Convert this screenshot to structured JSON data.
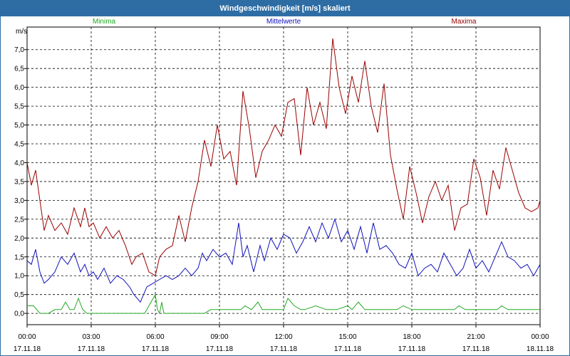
{
  "window": {
    "title": "Windgeschwindigkeit [m/s] skaliert"
  },
  "chart_data": {
    "type": "line",
    "title": "Windgeschwindigkeit [m/s] skaliert",
    "ylabel": "m/s",
    "xlabel": "",
    "ylim": [
      -0.3,
      7.6
    ],
    "yticks": [
      0.0,
      0.5,
      1.0,
      1.5,
      2.0,
      2.5,
      3.0,
      3.5,
      4.0,
      4.5,
      5.0,
      5.5,
      6.0,
      6.5,
      7.0
    ],
    "ytick_labels": [
      "0,0",
      "0,5",
      "1,0",
      "1,5",
      "2,0",
      "2,5",
      "3,0",
      "3,5",
      "4,0",
      "4,5",
      "5,0",
      "5,5",
      "6,0",
      "6,5",
      "7,0"
    ],
    "xlim": [
      0,
      24
    ],
    "xticks": [
      {
        "time": "00:00",
        "date": "17.11.18",
        "hour": 0
      },
      {
        "time": "03:00",
        "date": "17.11.18",
        "hour": 3
      },
      {
        "time": "06:00",
        "date": "17.11.18",
        "hour": 6
      },
      {
        "time": "09:00",
        "date": "17.11.18",
        "hour": 9
      },
      {
        "time": "12:00",
        "date": "17.11.18",
        "hour": 12
      },
      {
        "time": "15:00",
        "date": "17.11.18",
        "hour": 15
      },
      {
        "time": "18:00",
        "date": "17.11.18",
        "hour": 18
      },
      {
        "time": "21:00",
        "date": "17.11.18",
        "hour": 21
      },
      {
        "time": "00:00",
        "date": "18.11.18",
        "hour": 24
      }
    ],
    "grid": true,
    "legend_position": "top",
    "series": [
      {
        "name": "Minima",
        "color": "#22aa22",
        "x": [
          0,
          0.3,
          0.6,
          1,
          1.3,
          1.6,
          1.8,
          2,
          2.2,
          2.4,
          2.6,
          2.8,
          3,
          3.5,
          4,
          4.5,
          5,
          5.5,
          5.8,
          6,
          6.1,
          6.2,
          6.3,
          6.4,
          6.6,
          7,
          7.5,
          8,
          8.3,
          8.6,
          9,
          9.5,
          10,
          10.2,
          10.5,
          10.8,
          11,
          11.5,
          12,
          12.2,
          12.5,
          12.8,
          13,
          13.5,
          14,
          14.5,
          15,
          15.2,
          15.5,
          15.8,
          16,
          16.5,
          17,
          17.3,
          17.6,
          18,
          18.5,
          19,
          19.5,
          20,
          20.2,
          20.5,
          21,
          21.5,
          22,
          22.2,
          22.5,
          23,
          23.5,
          24
        ],
        "y": [
          0.2,
          0.2,
          0.0,
          0.0,
          0.1,
          0.1,
          0.3,
          0.1,
          0.1,
          0.4,
          0.1,
          0.0,
          0.0,
          0.0,
          0.0,
          0.0,
          0.0,
          0.0,
          0.3,
          0.5,
          0.1,
          0.0,
          0.3,
          0.0,
          0.0,
          0.0,
          0.0,
          0.0,
          0.0,
          0.1,
          0.1,
          0.1,
          0.1,
          0.2,
          0.1,
          0.3,
          0.1,
          0.1,
          0.1,
          0.4,
          0.2,
          0.1,
          0.1,
          0.2,
          0.1,
          0.1,
          0.2,
          0.1,
          0.3,
          0.1,
          0.1,
          0.1,
          0.1,
          0.1,
          0.2,
          0.1,
          0.1,
          0.1,
          0.1,
          0.1,
          0.2,
          0.1,
          0.1,
          0.1,
          0.1,
          0.2,
          0.1,
          0.1,
          0.1,
          0.1
        ]
      },
      {
        "name": "Mittelwerte",
        "color": "#1111bb",
        "x": [
          0,
          0.2,
          0.4,
          0.6,
          0.8,
          1,
          1.3,
          1.6,
          1.9,
          2.2,
          2.5,
          2.7,
          2.9,
          3.1,
          3.3,
          3.6,
          3.9,
          4.2,
          4.5,
          4.8,
          5,
          5.3,
          5.6,
          5.9,
          6.2,
          6.5,
          6.8,
          7.1,
          7.4,
          7.7,
          8,
          8.2,
          8.4,
          8.7,
          9,
          9.3,
          9.6,
          9.9,
          10.1,
          10.3,
          10.6,
          10.9,
          11.1,
          11.4,
          11.7,
          12,
          12.3,
          12.6,
          12.9,
          13.2,
          13.5,
          13.8,
          14.1,
          14.4,
          14.7,
          15,
          15.3,
          15.6,
          15.9,
          16.2,
          16.5,
          16.8,
          17.1,
          17.4,
          17.7,
          18,
          18.3,
          18.6,
          18.9,
          19.2,
          19.5,
          19.8,
          20.1,
          20.4,
          20.7,
          21,
          21.3,
          21.6,
          21.9,
          22.2,
          22.5,
          22.8,
          23.1,
          23.4,
          23.7,
          24
        ],
        "y": [
          1.4,
          1.3,
          1.7,
          1.1,
          0.8,
          0.9,
          1.1,
          1.5,
          1.3,
          1.6,
          1.1,
          1.3,
          1.0,
          1.1,
          0.9,
          1.2,
          0.8,
          1.0,
          0.9,
          0.7,
          0.5,
          0.3,
          0.7,
          0.8,
          0.9,
          1.0,
          0.9,
          1.0,
          1.2,
          1.0,
          1.2,
          1.6,
          1.4,
          1.7,
          1.5,
          1.6,
          1.3,
          2.4,
          1.5,
          1.8,
          1.1,
          1.8,
          1.4,
          2.0,
          1.7,
          2.1,
          2.0,
          1.6,
          1.9,
          2.3,
          1.9,
          2.4,
          2.0,
          2.5,
          1.9,
          2.2,
          1.7,
          2.3,
          1.6,
          2.4,
          1.7,
          1.8,
          1.6,
          1.3,
          1.2,
          1.6,
          1.0,
          1.2,
          1.3,
          1.1,
          1.6,
          1.3,
          1.0,
          1.2,
          1.7,
          1.2,
          1.4,
          1.1,
          1.5,
          1.9,
          1.5,
          1.4,
          1.2,
          1.3,
          1.0,
          1.3
        ]
      },
      {
        "name": "Maxima",
        "color": "#990000",
        "x": [
          0,
          0.2,
          0.4,
          0.6,
          0.8,
          1,
          1.3,
          1.6,
          1.9,
          2.2,
          2.5,
          2.7,
          2.9,
          3.1,
          3.4,
          3.7,
          4,
          4.3,
          4.6,
          4.9,
          5.1,
          5.4,
          5.7,
          6,
          6.2,
          6.5,
          6.8,
          7.1,
          7.4,
          7.7,
          8,
          8.3,
          8.6,
          8.9,
          9.2,
          9.5,
          9.8,
          10.1,
          10.4,
          10.7,
          11,
          11.3,
          11.6,
          11.9,
          12.2,
          12.5,
          12.8,
          13.1,
          13.4,
          13.7,
          14,
          14.3,
          14.6,
          14.9,
          15.2,
          15.5,
          15.8,
          16.1,
          16.4,
          16.7,
          17,
          17.3,
          17.6,
          17.9,
          18.2,
          18.5,
          18.8,
          19.1,
          19.4,
          19.7,
          20,
          20.3,
          20.6,
          20.9,
          21.2,
          21.5,
          21.8,
          22.1,
          22.4,
          22.7,
          23,
          23.3,
          23.6,
          23.9,
          24
        ],
        "y": [
          4.0,
          3.4,
          3.8,
          3.0,
          2.2,
          2.6,
          2.2,
          2.4,
          2.1,
          2.8,
          2.3,
          2.8,
          2.3,
          2.4,
          2.0,
          2.3,
          2.0,
          2.2,
          1.8,
          1.3,
          1.5,
          1.6,
          1.1,
          1.0,
          1.5,
          1.7,
          1.8,
          2.6,
          1.9,
          2.8,
          3.5,
          4.6,
          3.9,
          5.0,
          4.1,
          4.3,
          3.4,
          5.9,
          4.9,
          3.6,
          4.3,
          4.6,
          5.0,
          4.7,
          5.6,
          5.7,
          4.2,
          6.0,
          5.0,
          5.6,
          4.9,
          7.3,
          6.0,
          5.3,
          6.3,
          5.6,
          6.7,
          5.5,
          4.8,
          6.1,
          4.2,
          3.3,
          2.5,
          3.9,
          3.2,
          2.4,
          3.1,
          3.5,
          3.0,
          3.4,
          2.2,
          2.8,
          2.9,
          4.1,
          3.6,
          2.6,
          3.8,
          3.3,
          4.4,
          3.8,
          3.2,
          2.8,
          2.7,
          2.8,
          3.0
        ]
      }
    ]
  }
}
